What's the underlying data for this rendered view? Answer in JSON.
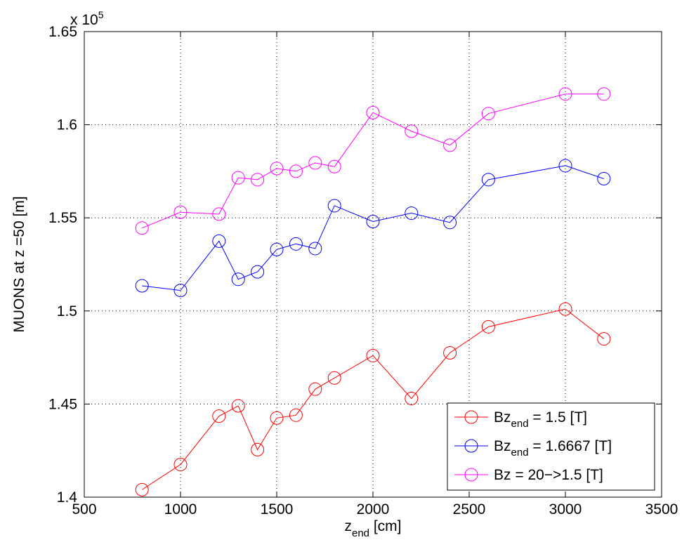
{
  "chart_data": {
    "type": "line",
    "xlabel": {
      "main": "z",
      "sub": "end",
      "tail": " [cm]"
    },
    "ylabel": "MUONS at z =50 [m]",
    "y_multiplier": {
      "base": "x 10",
      "exp": "5"
    },
    "xlim": [
      500,
      3500
    ],
    "ylim": [
      1.4,
      1.65
    ],
    "xticks": [
      500,
      1000,
      1500,
      2000,
      2500,
      3000,
      3500
    ],
    "xtick_labels": [
      "500",
      "1000",
      "1500",
      "2000",
      "2500",
      "3000",
      "3500"
    ],
    "yticks": [
      1.4,
      1.45,
      1.5,
      1.55,
      1.6,
      1.65
    ],
    "ytick_labels": [
      "1.4",
      "1.45",
      "1.5",
      "1.55",
      "1.6",
      "1.65"
    ],
    "grid": true,
    "legend_position": "bottom-right",
    "x": [
      800,
      1000,
      1200,
      1300,
      1400,
      1500,
      1600,
      1700,
      1800,
      2000,
      2200,
      2400,
      2600,
      3000,
      3200
    ],
    "series": [
      {
        "name": {
          "main": "Bz",
          "sub": "end",
          "tail": " = 1.5 [T]"
        },
        "color": "#ff0000",
        "marker": "circle",
        "values": [
          1.404,
          1.4175,
          1.4435,
          1.449,
          1.4255,
          1.4425,
          1.444,
          1.458,
          1.464,
          1.476,
          1.453,
          1.4775,
          1.4915,
          1.501,
          1.485
        ]
      },
      {
        "name": {
          "main": "Bz",
          "sub": "end",
          "tail": " = 1.6667 [T]"
        },
        "color": "#0000ff",
        "marker": "circle",
        "values": [
          1.5135,
          1.511,
          1.5375,
          1.517,
          1.521,
          1.533,
          1.536,
          1.5335,
          1.5565,
          1.548,
          1.5525,
          1.5475,
          1.5705,
          1.578,
          1.571
        ]
      },
      {
        "name": {
          "main": "Bz = 20−>1.5 [T]",
          "sub": "",
          "tail": ""
        },
        "color": "#ff00ff",
        "marker": "circle",
        "values": [
          1.5445,
          1.553,
          1.552,
          1.5715,
          1.5705,
          1.5765,
          1.575,
          1.5795,
          1.5775,
          1.6065,
          1.5965,
          1.589,
          1.606,
          1.6165,
          1.6165
        ]
      }
    ]
  }
}
